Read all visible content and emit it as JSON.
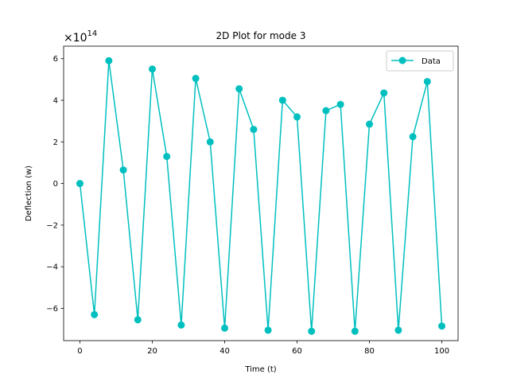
{
  "chart_data": {
    "type": "line",
    "title": "2D Plot for mode 3",
    "xlabel": "Time (t)",
    "ylabel": "Deflection (w)",
    "y_offset_label": "×10",
    "y_offset_exponent": "14",
    "y_scale": 100000000000000.0,
    "xlim": [
      -4.5,
      104.5
    ],
    "ylim": [
      -7.55,
      6.6
    ],
    "xticks": [
      0,
      20,
      40,
      60,
      80,
      100
    ],
    "yticks": [
      -6,
      -4,
      -2,
      0,
      2,
      4,
      6
    ],
    "xtick_labels": [
      "0",
      "20",
      "40",
      "60",
      "80",
      "100"
    ],
    "ytick_labels": [
      "−6",
      "−4",
      "−2",
      "0",
      "2",
      "4",
      "6"
    ],
    "grid": false,
    "legend_position": "top-right",
    "series": [
      {
        "name": "Data",
        "color": "#00bfbf",
        "marker": "circle",
        "x": [
          0,
          4,
          8,
          12,
          16,
          20,
          24,
          28,
          32,
          36,
          40,
          44,
          48,
          52,
          56,
          60,
          64,
          68,
          72,
          76,
          80,
          84,
          88,
          92,
          96,
          100
        ],
        "y": [
          0.0,
          -6.3,
          5.9,
          0.65,
          -6.55,
          5.5,
          1.3,
          -6.8,
          5.05,
          2.0,
          -6.95,
          4.55,
          2.6,
          -7.05,
          4.0,
          3.2,
          -7.1,
          3.5,
          3.8,
          -7.1,
          2.85,
          4.35,
          -7.05,
          2.25,
          4.9,
          -6.85
        ]
      }
    ]
  }
}
